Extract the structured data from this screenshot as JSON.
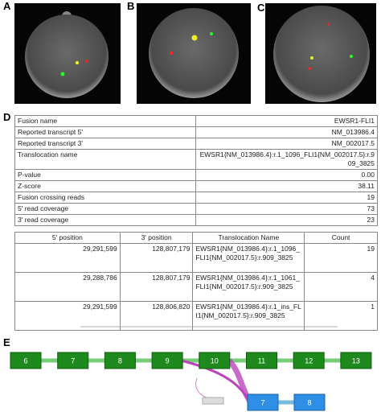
{
  "panels": {
    "a": "A",
    "b": "B",
    "c": "C",
    "d": "D",
    "e": "E"
  },
  "fusion_table": {
    "rows": [
      [
        "Fusion name",
        "EWSR1-FLI1"
      ],
      [
        "Reported transcript 5'",
        "NM_013986.4"
      ],
      [
        "Reported transcript 3'",
        "NM_002017.5"
      ],
      [
        "Translocation name",
        "EWSR1{NM_013986.4}:r.1_1096_FLI1{NM_002017.5}:r.909_3825"
      ],
      [
        "P-value",
        "0.00"
      ],
      [
        "Z-score",
        "38.11"
      ],
      [
        "Fusion crossing reads",
        "19"
      ],
      [
        "5' read coverage",
        "73"
      ],
      [
        "3' read coverage",
        "23"
      ]
    ]
  },
  "position_table": {
    "header": [
      "5' position",
      "3' position",
      "Translocation Name",
      "Count"
    ],
    "rows": [
      [
        "29,291,599",
        "128,807,179",
        "EWSR1{NM_013986.4}:r.1_1096_FLI1{NM_002017.5}:r.909_3825",
        "19"
      ],
      [
        "29,288,786",
        "128,807,179",
        "EWSR1{NM_013986.4}:r.1_1061_FLI1{NM_002017.5}:r.909_3825",
        "4"
      ],
      [
        "29,291,599",
        "128,806,820",
        "EWSR1{NM_013986.4}:r.1_ins_FLI1{NM_002017.5}:r.909_3825",
        "1"
      ]
    ]
  },
  "diagram": {
    "ewsr1_exons": [
      "6",
      "7",
      "8",
      "9",
      "10",
      "11",
      "12",
      "13"
    ],
    "fli1_exons": [
      "7",
      "8"
    ]
  }
}
